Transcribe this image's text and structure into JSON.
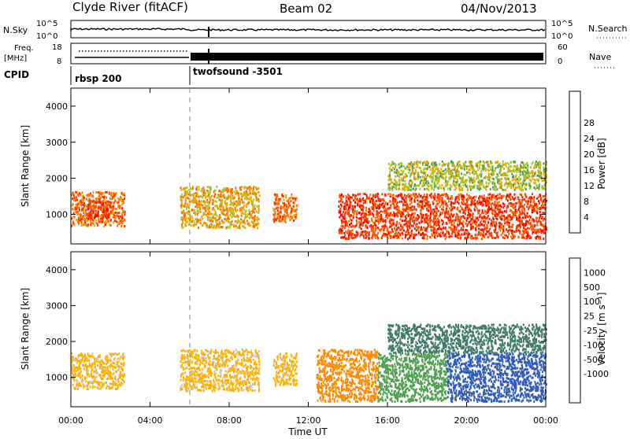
{
  "header": {
    "station": "Clyde River (fitACF)",
    "beam": "Beam 02",
    "date": "04/Nov/2013"
  },
  "strips": {
    "nsky": {
      "label": "N.Sky",
      "ticks_left": [
        "10^5",
        "10^0"
      ],
      "ticks_right": [
        "10^5",
        "10^0"
      ],
      "right_label": "N.Search"
    },
    "freq": {
      "label_line1": "Freq.",
      "label_line2": "[MHz]",
      "ticks_left": [
        "18",
        "8"
      ],
      "ticks_right": [
        "60",
        "0"
      ],
      "right_label": "Nave"
    },
    "cpid": {
      "label": "CPID",
      "segments": [
        {
          "name": "rbsp 200",
          "start_hour": 0
        },
        {
          "name": "twofsound -3501",
          "start_hour": 6
        }
      ]
    }
  },
  "panels": {
    "power": {
      "ylabel": "Slant Range [km]",
      "yticks": [
        "1000",
        "2000",
        "3000",
        "4000"
      ],
      "colorbar": {
        "label": "Power [dB]",
        "labels": [
          "4",
          "8",
          "12",
          "16",
          "20",
          "24",
          "28"
        ],
        "colors": [
          "#1a1aff",
          "#2850c8",
          "#3a7a7a",
          "#4f9c4f",
          "#a8c828",
          "#f5a000",
          "#ff6a00",
          "#ff3000",
          "#ff0000"
        ]
      }
    },
    "velocity": {
      "ylabel": "Slant Range [km]",
      "yticks": [
        "1000",
        "2000",
        "3000",
        "4000"
      ],
      "colorbar": {
        "label": "Velocity [m s⁻¹]",
        "labels": [
          "1000",
          "500",
          "100",
          "25",
          "-25",
          "-100",
          "-500",
          "-1000"
        ],
        "colors": [
          "#1a3cc8",
          "#2e5bbd",
          "#3f7a6a",
          "#4fa04f",
          "#66cc33",
          "#c8c8c8",
          "#ffb000",
          "#ff8a00",
          "#ff5a00",
          "#ff0000"
        ]
      }
    }
  },
  "xaxis": {
    "ticks": [
      "00:00",
      "04:00",
      "08:00",
      "12:00",
      "16:00",
      "20:00",
      "00:00"
    ],
    "label": "Time UT"
  },
  "chart_data": {
    "type": "heatmap",
    "x_range_hours": [
      0,
      24
    ],
    "y_range_km": [
      180,
      4500
    ],
    "power_blobs": [
      {
        "t0": 0.0,
        "t1": 2.7,
        "r0": 700,
        "r1": 1650,
        "level": 24
      },
      {
        "t0": 0.8,
        "t1": 2.0,
        "r0": 900,
        "r1": 1400,
        "level": 28
      },
      {
        "t0": 5.5,
        "t1": 9.5,
        "r0": 650,
        "r1": 1800,
        "level": 20
      },
      {
        "t0": 10.2,
        "t1": 11.4,
        "r0": 800,
        "r1": 1600,
        "level": 24
      },
      {
        "t0": 13.5,
        "t1": 24.0,
        "r0": 350,
        "r1": 1600,
        "level": 28
      },
      {
        "t0": 16.0,
        "t1": 24.0,
        "r0": 1700,
        "r1": 2500,
        "level": 16
      }
    ],
    "velocity_blobs": [
      {
        "t0": 0.0,
        "t1": 2.7,
        "r0": 700,
        "r1": 1700,
        "level": -200
      },
      {
        "t0": 5.5,
        "t1": 9.5,
        "r0": 650,
        "r1": 1800,
        "level": -200
      },
      {
        "t0": 10.2,
        "t1": 11.4,
        "r0": 800,
        "r1": 1700,
        "level": -200
      },
      {
        "t0": 12.4,
        "t1": 15.5,
        "r0": 350,
        "r1": 1800,
        "level": -700
      },
      {
        "t0": 15.5,
        "t1": 19.0,
        "r0": 350,
        "r1": 1700,
        "level": 50
      },
      {
        "t0": 19.0,
        "t1": 24.0,
        "r0": 350,
        "r1": 1700,
        "level": 700
      },
      {
        "t0": 16.0,
        "t1": 24.0,
        "r0": 1700,
        "r1": 2500,
        "level": 300
      }
    ]
  }
}
